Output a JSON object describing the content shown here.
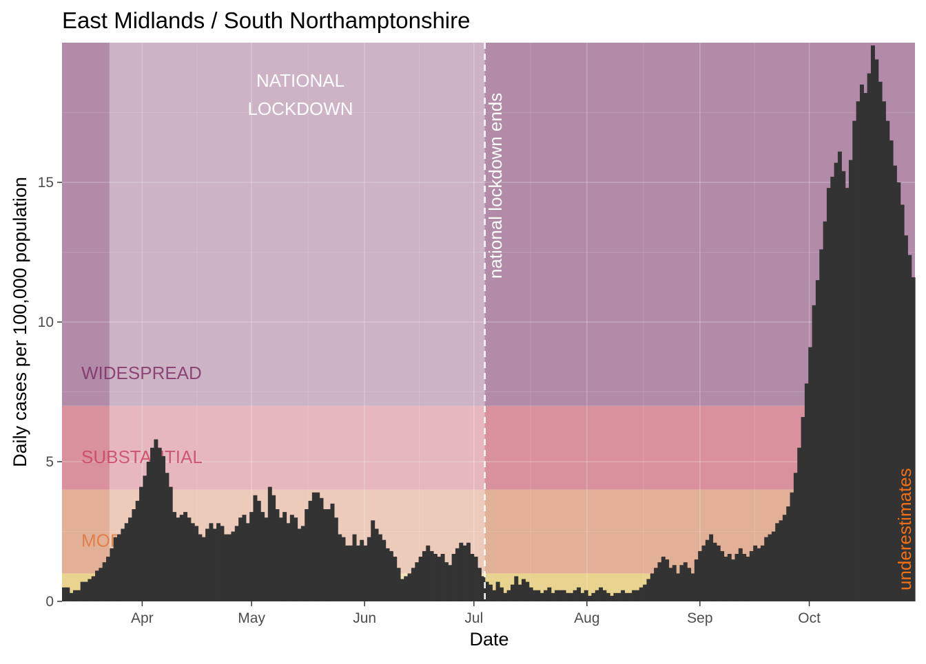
{
  "chart_data": {
    "type": "bar",
    "title": "East Midlands / South Northamptonshire",
    "xlabel": "Date",
    "ylabel": "Daily cases per 100,000 population",
    "x_start": "2020-03-10",
    "x_end": "2020-10-30",
    "ylim": [
      0,
      20
    ],
    "y_ticks": [
      {
        "value": 0,
        "label": "0"
      },
      {
        "value": 5,
        "label": "5"
      },
      {
        "value": 10,
        "label": "10"
      },
      {
        "value": 15,
        "label": "15"
      }
    ],
    "x_ticks": [
      {
        "date": "2020-04-01",
        "label": "Apr"
      },
      {
        "date": "2020-05-01",
        "label": "May"
      },
      {
        "date": "2020-06-01",
        "label": "Jun"
      },
      {
        "date": "2020-07-01",
        "label": "Jul"
      },
      {
        "date": "2020-08-01",
        "label": "Aug"
      },
      {
        "date": "2020-09-01",
        "label": "Sep"
      },
      {
        "date": "2020-10-01",
        "label": "Oct"
      }
    ],
    "bands": [
      {
        "name": "low",
        "label": "",
        "from": 0,
        "to": 1,
        "color": "#e9d48f"
      },
      {
        "name": "moderate",
        "label": "MODERATE",
        "from": 1,
        "to": 4,
        "color": "#e2b096",
        "text_color": "#e0743a"
      },
      {
        "name": "substantial",
        "label": "SUBSTANTIAL",
        "from": 4,
        "to": 7,
        "color": "#d9919d",
        "text_color": "#c8405e"
      },
      {
        "name": "widespread",
        "label": "WIDESPREAD",
        "from": 7,
        "to": 20,
        "color": "#b18ba7",
        "text_color": "#7a2a63"
      }
    ],
    "lockdown": {
      "label_line1": "NATIONAL",
      "label_line2": "LOCKDOWN",
      "start": "2020-03-23",
      "end": "2020-07-04",
      "overlay_color": "#ffffff",
      "overlay_opacity": 0.35
    },
    "lockdown_end_annotation": {
      "label": "national lockdown ends",
      "date": "2020-07-04"
    },
    "underestimate_annotation": {
      "label": "underestimates",
      "color": "#f07018"
    },
    "bar_color": "#333333",
    "values": [
      0.5,
      0.5,
      0.3,
      0.4,
      0.4,
      0.7,
      0.7,
      0.8,
      0.9,
      1.1,
      1.2,
      1.4,
      1.6,
      1.9,
      2.3,
      2.4,
      2.6,
      2.8,
      3.0,
      3.3,
      3.6,
      4.1,
      4.5,
      5.0,
      5.5,
      5.8,
      5.5,
      5.2,
      4.6,
      4.1,
      3.2,
      3.0,
      3.1,
      3.2,
      3.0,
      2.8,
      2.7,
      2.4,
      2.3,
      2.6,
      2.8,
      2.6,
      2.8,
      2.7,
      2.4,
      2.4,
      2.5,
      2.7,
      3.0,
      3.1,
      2.8,
      3.2,
      3.8,
      3.6,
      3.2,
      3.0,
      4.1,
      3.8,
      3.3,
      3.0,
      3.2,
      2.8,
      3.1,
      3.0,
      2.6,
      2.7,
      3.3,
      3.6,
      3.9,
      3.9,
      3.7,
      3.3,
      3.3,
      3.5,
      3.0,
      2.4,
      2.3,
      2.0,
      2.0,
      2.4,
      2.0,
      2.2,
      2.0,
      2.3,
      2.9,
      2.6,
      2.4,
      2.2,
      1.9,
      1.8,
      1.6,
      1.2,
      0.8,
      0.9,
      1.0,
      1.2,
      1.4,
      1.6,
      1.8,
      2.0,
      1.8,
      1.7,
      1.6,
      1.7,
      1.4,
      1.3,
      1.7,
      1.9,
      2.1,
      2.0,
      2.1,
      1.7,
      1.6,
      1.2,
      0.9,
      0.7,
      0.6,
      0.4,
      0.7,
      0.5,
      0.3,
      0.4,
      0.6,
      0.9,
      0.6,
      0.8,
      0.7,
      0.5,
      0.4,
      0.4,
      0.3,
      0.4,
      0.5,
      0.3,
      0.4,
      0.4,
      0.4,
      0.3,
      0.3,
      0.4,
      0.5,
      0.3,
      0.4,
      0.2,
      0.3,
      0.4,
      0.5,
      0.4,
      0.3,
      0.2,
      0.3,
      0.3,
      0.4,
      0.3,
      0.3,
      0.4,
      0.4,
      0.5,
      0.6,
      0.8,
      1.0,
      1.2,
      1.4,
      1.6,
      1.5,
      1.2,
      1.3,
      1.0,
      1.3,
      1.4,
      1.2,
      1.0,
      1.5,
      1.8,
      2.0,
      2.2,
      2.4,
      2.1,
      2.0,
      1.8,
      1.6,
      1.7,
      1.5,
      1.7,
      1.9,
      1.7,
      1.6,
      1.8,
      2.0,
      1.9,
      2.0,
      2.3,
      2.4,
      2.5,
      2.8,
      2.9,
      3.1,
      3.4,
      3.9,
      4.6,
      5.5,
      6.6,
      7.8,
      9.1,
      10.6,
      11.5,
      12.6,
      13.6,
      14.8,
      15.2,
      15.7,
      16.1,
      15.4,
      14.8,
      15.8,
      17.2,
      17.9,
      18.5,
      18.2,
      18.9,
      19.9,
      19.4,
      18.6,
      17.9,
      17.2,
      16.5,
      15.6,
      15.0,
      14.2,
      13.1,
      12.4,
      11.6
    ]
  }
}
